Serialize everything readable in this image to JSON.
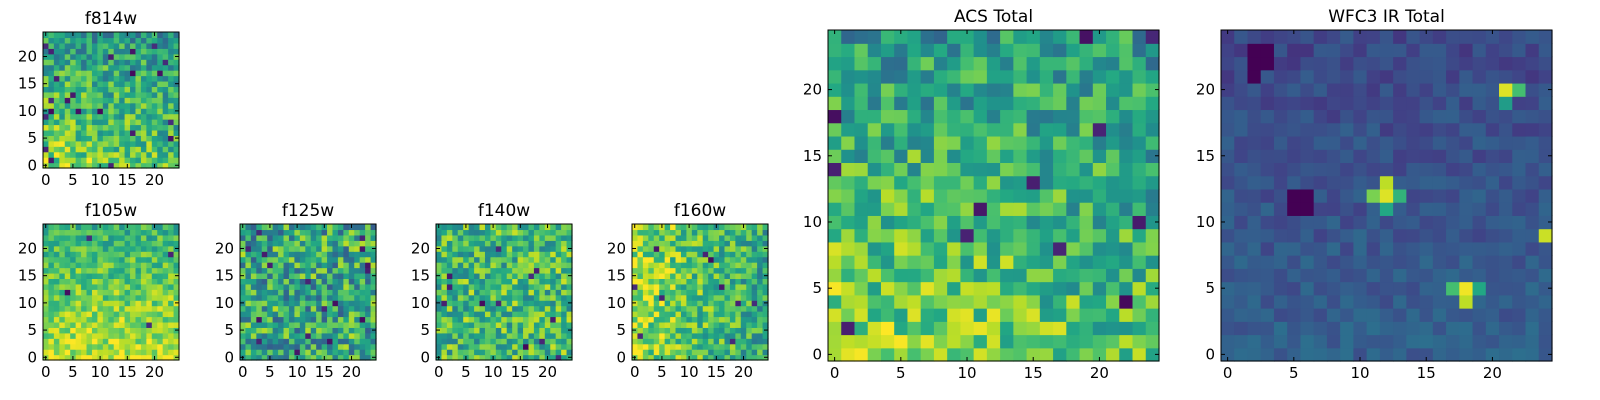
{
  "figure": {
    "description_free": true
  },
  "chart_data": [
    {
      "id": "f814w",
      "type": "heatmap",
      "title": "f814w",
      "grid_size": 25,
      "xlim": [
        -0.5,
        24.5
      ],
      "ylim": [
        -0.5,
        24.5
      ],
      "xticks": [
        0,
        5,
        10,
        15,
        20
      ],
      "yticks": [
        0,
        5,
        10,
        15,
        20
      ],
      "xtick_labels": [
        "0",
        "5",
        "10",
        "15",
        "20"
      ],
      "yticks_labels": [
        "0",
        "5",
        "10",
        "15",
        "20"
      ],
      "colormap": "viridis",
      "seed": 814,
      "bias": "bottom-left-bright",
      "dark_cells": 22
    },
    {
      "id": "f105w",
      "type": "heatmap",
      "title": "f105w",
      "grid_size": 25,
      "xlim": [
        -0.5,
        24.5
      ],
      "ylim": [
        -0.5,
        24.5
      ],
      "xticks": [
        0,
        5,
        10,
        15,
        20
      ],
      "yticks": [
        0,
        5,
        10,
        15,
        20
      ],
      "xtick_labels": [
        "0",
        "5",
        "10",
        "15",
        "20"
      ],
      "yticks_labels": [
        "0",
        "5",
        "10",
        "15",
        "20"
      ],
      "colormap": "viridis",
      "seed": 105,
      "bias": "bottom-bright",
      "dark_cells": 4
    },
    {
      "id": "f125w",
      "type": "heatmap",
      "title": "f125w",
      "grid_size": 25,
      "xlim": [
        -0.5,
        24.5
      ],
      "ylim": [
        -0.5,
        24.5
      ],
      "xticks": [
        0,
        5,
        10,
        15,
        20
      ],
      "yticks": [
        0,
        5,
        10,
        15,
        20
      ],
      "xtick_labels": [
        "0",
        "5",
        "10",
        "15",
        "20"
      ],
      "yticks_labels": [
        "0",
        "5",
        "10",
        "15",
        "20"
      ],
      "colormap": "viridis",
      "seed": 125,
      "bias": "mixed",
      "dark_cells": 18
    },
    {
      "id": "f140w",
      "type": "heatmap",
      "title": "f140w",
      "grid_size": 25,
      "xlim": [
        -0.5,
        24.5
      ],
      "ylim": [
        -0.5,
        24.5
      ],
      "xticks": [
        0,
        5,
        10,
        15,
        20
      ],
      "yticks": [
        0,
        5,
        10,
        15,
        20
      ],
      "xtick_labels": [
        "0",
        "5",
        "10",
        "15",
        "20"
      ],
      "yticks_labels": [
        "0",
        "5",
        "10",
        "15",
        "20"
      ],
      "colormap": "viridis",
      "seed": 140,
      "bias": "mixed-bright",
      "dark_cells": 12
    },
    {
      "id": "f160w",
      "type": "heatmap",
      "title": "f160w",
      "grid_size": 25,
      "xlim": [
        -0.5,
        24.5
      ],
      "ylim": [
        -0.5,
        24.5
      ],
      "xticks": [
        0,
        5,
        10,
        15,
        20
      ],
      "yticks": [
        0,
        5,
        10,
        15,
        20
      ],
      "xtick_labels": [
        "0",
        "5",
        "10",
        "15",
        "20"
      ],
      "yticks_labels": [
        "0",
        "5",
        "10",
        "15",
        "20"
      ],
      "colormap": "viridis",
      "seed": 160,
      "bias": "left-bright",
      "dark_cells": 10
    },
    {
      "id": "acs_total",
      "type": "heatmap",
      "title": "ACS Total",
      "grid_size": 25,
      "xlim": [
        -0.5,
        24.5
      ],
      "ylim": [
        -0.5,
        24.5
      ],
      "xticks": [
        0,
        5,
        10,
        15,
        20
      ],
      "yticks": [
        0,
        5,
        10,
        15,
        20
      ],
      "xtick_labels": [
        "0",
        "5",
        "10",
        "15",
        "20"
      ],
      "yticks_labels": [
        "0",
        "5",
        "10",
        "15",
        "20"
      ],
      "colormap": "viridis",
      "seed": 777,
      "bias": "bottom-left-bright",
      "dark_cells": 12
    },
    {
      "id": "wfc3_ir_total",
      "type": "heatmap",
      "title": "WFC3 IR Total",
      "grid_size": 25,
      "xlim": [
        -0.5,
        24.5
      ],
      "ylim": [
        -0.5,
        24.5
      ],
      "xticks": [
        0,
        5,
        10,
        15,
        20
      ],
      "yticks": [
        0,
        5,
        10,
        15,
        20
      ],
      "xtick_labels": [
        "0",
        "5",
        "10",
        "15",
        "20"
      ],
      "yticks_labels": [
        "0",
        "5",
        "10",
        "15",
        "20"
      ],
      "colormap": "viridis",
      "seed": 999,
      "bias": "dark-field",
      "bright_spots": [
        {
          "x": 12,
          "y": 12,
          "value": 0.95
        },
        {
          "x": 12,
          "y": 13,
          "value": 0.9
        },
        {
          "x": 11,
          "y": 12,
          "value": 0.8
        },
        {
          "x": 13,
          "y": 12,
          "value": 0.65
        },
        {
          "x": 12,
          "y": 11,
          "value": 0.6
        },
        {
          "x": 18,
          "y": 5,
          "value": 0.98
        },
        {
          "x": 18,
          "y": 4,
          "value": 0.9
        },
        {
          "x": 17,
          "y": 5,
          "value": 0.7
        },
        {
          "x": 19,
          "y": 5,
          "value": 0.6
        },
        {
          "x": 21,
          "y": 20,
          "value": 0.95
        },
        {
          "x": 22,
          "y": 20,
          "value": 0.7
        },
        {
          "x": 21,
          "y": 19,
          "value": 0.55
        },
        {
          "x": 24,
          "y": 9,
          "value": 0.92
        }
      ],
      "dark_spots": [
        {
          "x": 5,
          "y": 12
        },
        {
          "x": 6,
          "y": 12
        },
        {
          "x": 5,
          "y": 11
        },
        {
          "x": 6,
          "y": 11
        },
        {
          "x": 2,
          "y": 22
        },
        {
          "x": 3,
          "y": 22
        },
        {
          "x": 2,
          "y": 23
        },
        {
          "x": 3,
          "y": 23
        },
        {
          "x": 2,
          "y": 21
        }
      ]
    }
  ]
}
